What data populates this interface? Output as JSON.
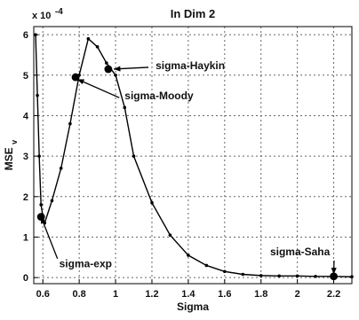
{
  "chart_data": {
    "type": "line",
    "title": "In Dim 2",
    "xlabel": "Sigma",
    "ylabel": "MSE",
    "ylabel_subscript": "v",
    "y_multiplier_label": "x 10",
    "y_multiplier_exponent": "-4",
    "xlim": [
      0.55,
      2.3
    ],
    "ylim": [
      -0.15,
      6.2
    ],
    "grid": true,
    "x_ticks": [
      0.6,
      0.8,
      1.0,
      1.2,
      1.4,
      1.6,
      1.8,
      2.0,
      2.2
    ],
    "x_tick_labels": [
      "0.6",
      "0.8",
      "1",
      "1.2",
      "1.4",
      "1.6",
      "1.8",
      "2",
      "2.2"
    ],
    "y_ticks": [
      0,
      1,
      2,
      3,
      4,
      5,
      6
    ],
    "y_tick_labels": [
      "0",
      "1",
      "2",
      "3",
      "4",
      "5",
      "6"
    ],
    "series": [
      {
        "color": "#000000",
        "x": [
          0.56,
          0.57,
          0.58,
          0.59,
          0.6,
          0.61,
          0.65,
          0.7,
          0.75,
          0.8,
          0.85,
          0.9,
          0.95,
          1.0,
          1.05,
          1.1,
          1.2,
          1.3,
          1.4,
          1.5,
          1.6,
          1.7,
          1.8,
          1.9,
          2.0,
          2.1,
          2.2,
          2.3
        ],
        "y": [
          6.0,
          4.5,
          3.0,
          1.8,
          1.5,
          1.35,
          1.9,
          2.7,
          3.8,
          5.0,
          5.9,
          5.7,
          5.3,
          5.0,
          4.2,
          3.0,
          1.85,
          1.05,
          0.55,
          0.3,
          0.15,
          0.08,
          0.05,
          0.04,
          0.04,
          0.03,
          0.03,
          0.02
        ]
      }
    ],
    "highlighted_points": [
      {
        "x": 0.59,
        "y": 1.5
      },
      {
        "x": 0.78,
        "y": 4.95
      },
      {
        "x": 0.96,
        "y": 5.15
      },
      {
        "x": 2.2,
        "y": 0.03
      }
    ],
    "annotations": [
      {
        "text": "sigma-Haykin",
        "point_x": 0.99,
        "point_y": 5.15,
        "label_x": 1.22,
        "label_y": 5.15
      },
      {
        "text": "sigma-Moody",
        "point_x": 0.79,
        "point_y": 4.9,
        "label_x": 1.05,
        "label_y": 4.4
      },
      {
        "text": "sigma-exp",
        "point_x": 0.59,
        "point_y": 1.5,
        "label_x": 0.69,
        "label_y": 0.25
      },
      {
        "text": "sigma-Saha",
        "point_x": 2.2,
        "point_y": 0.08,
        "label_x": 1.85,
        "label_y": 0.55
      }
    ]
  }
}
